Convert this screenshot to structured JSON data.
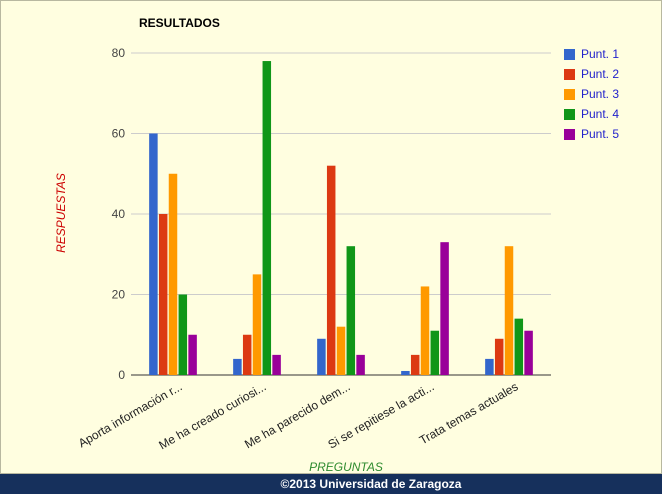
{
  "chart_data": {
    "type": "bar",
    "title": "RESULTADOS",
    "xlabel": "PREGUNTAS",
    "ylabel": "RESPUESTAS",
    "ylim": [
      0,
      80
    ],
    "yticks": [
      0,
      20,
      40,
      60,
      80
    ],
    "grid": true,
    "legend_position": "right",
    "categories": [
      "Aporta información r...",
      "Me ha creado curiosi...",
      "Me ha parecido dem...",
      "Si se repitiese la acti...",
      "Trata temas actuales"
    ],
    "series": [
      {
        "name": "Punt. 1",
        "color": "#3366cc",
        "values": [
          60,
          4,
          9,
          1,
          4
        ]
      },
      {
        "name": "Punt. 2",
        "color": "#dc3912",
        "values": [
          40,
          10,
          52,
          5,
          9
        ]
      },
      {
        "name": "Punt. 3",
        "color": "#ff9900",
        "values": [
          50,
          25,
          12,
          22,
          32
        ]
      },
      {
        "name": "Punt. 4",
        "color": "#109618",
        "values": [
          20,
          78,
          32,
          11,
          14
        ]
      },
      {
        "name": "Punt. 5",
        "color": "#990099",
        "values": [
          10,
          5,
          5,
          33,
          11
        ]
      }
    ]
  },
  "colors": {
    "ylabel": "#cc0000",
    "xlabel": "#2e8b2e",
    "legend_text": "#2222cc",
    "footer_bg": "#16305c"
  },
  "footer": {
    "text": "©2013 Universidad de Zaragoza"
  }
}
